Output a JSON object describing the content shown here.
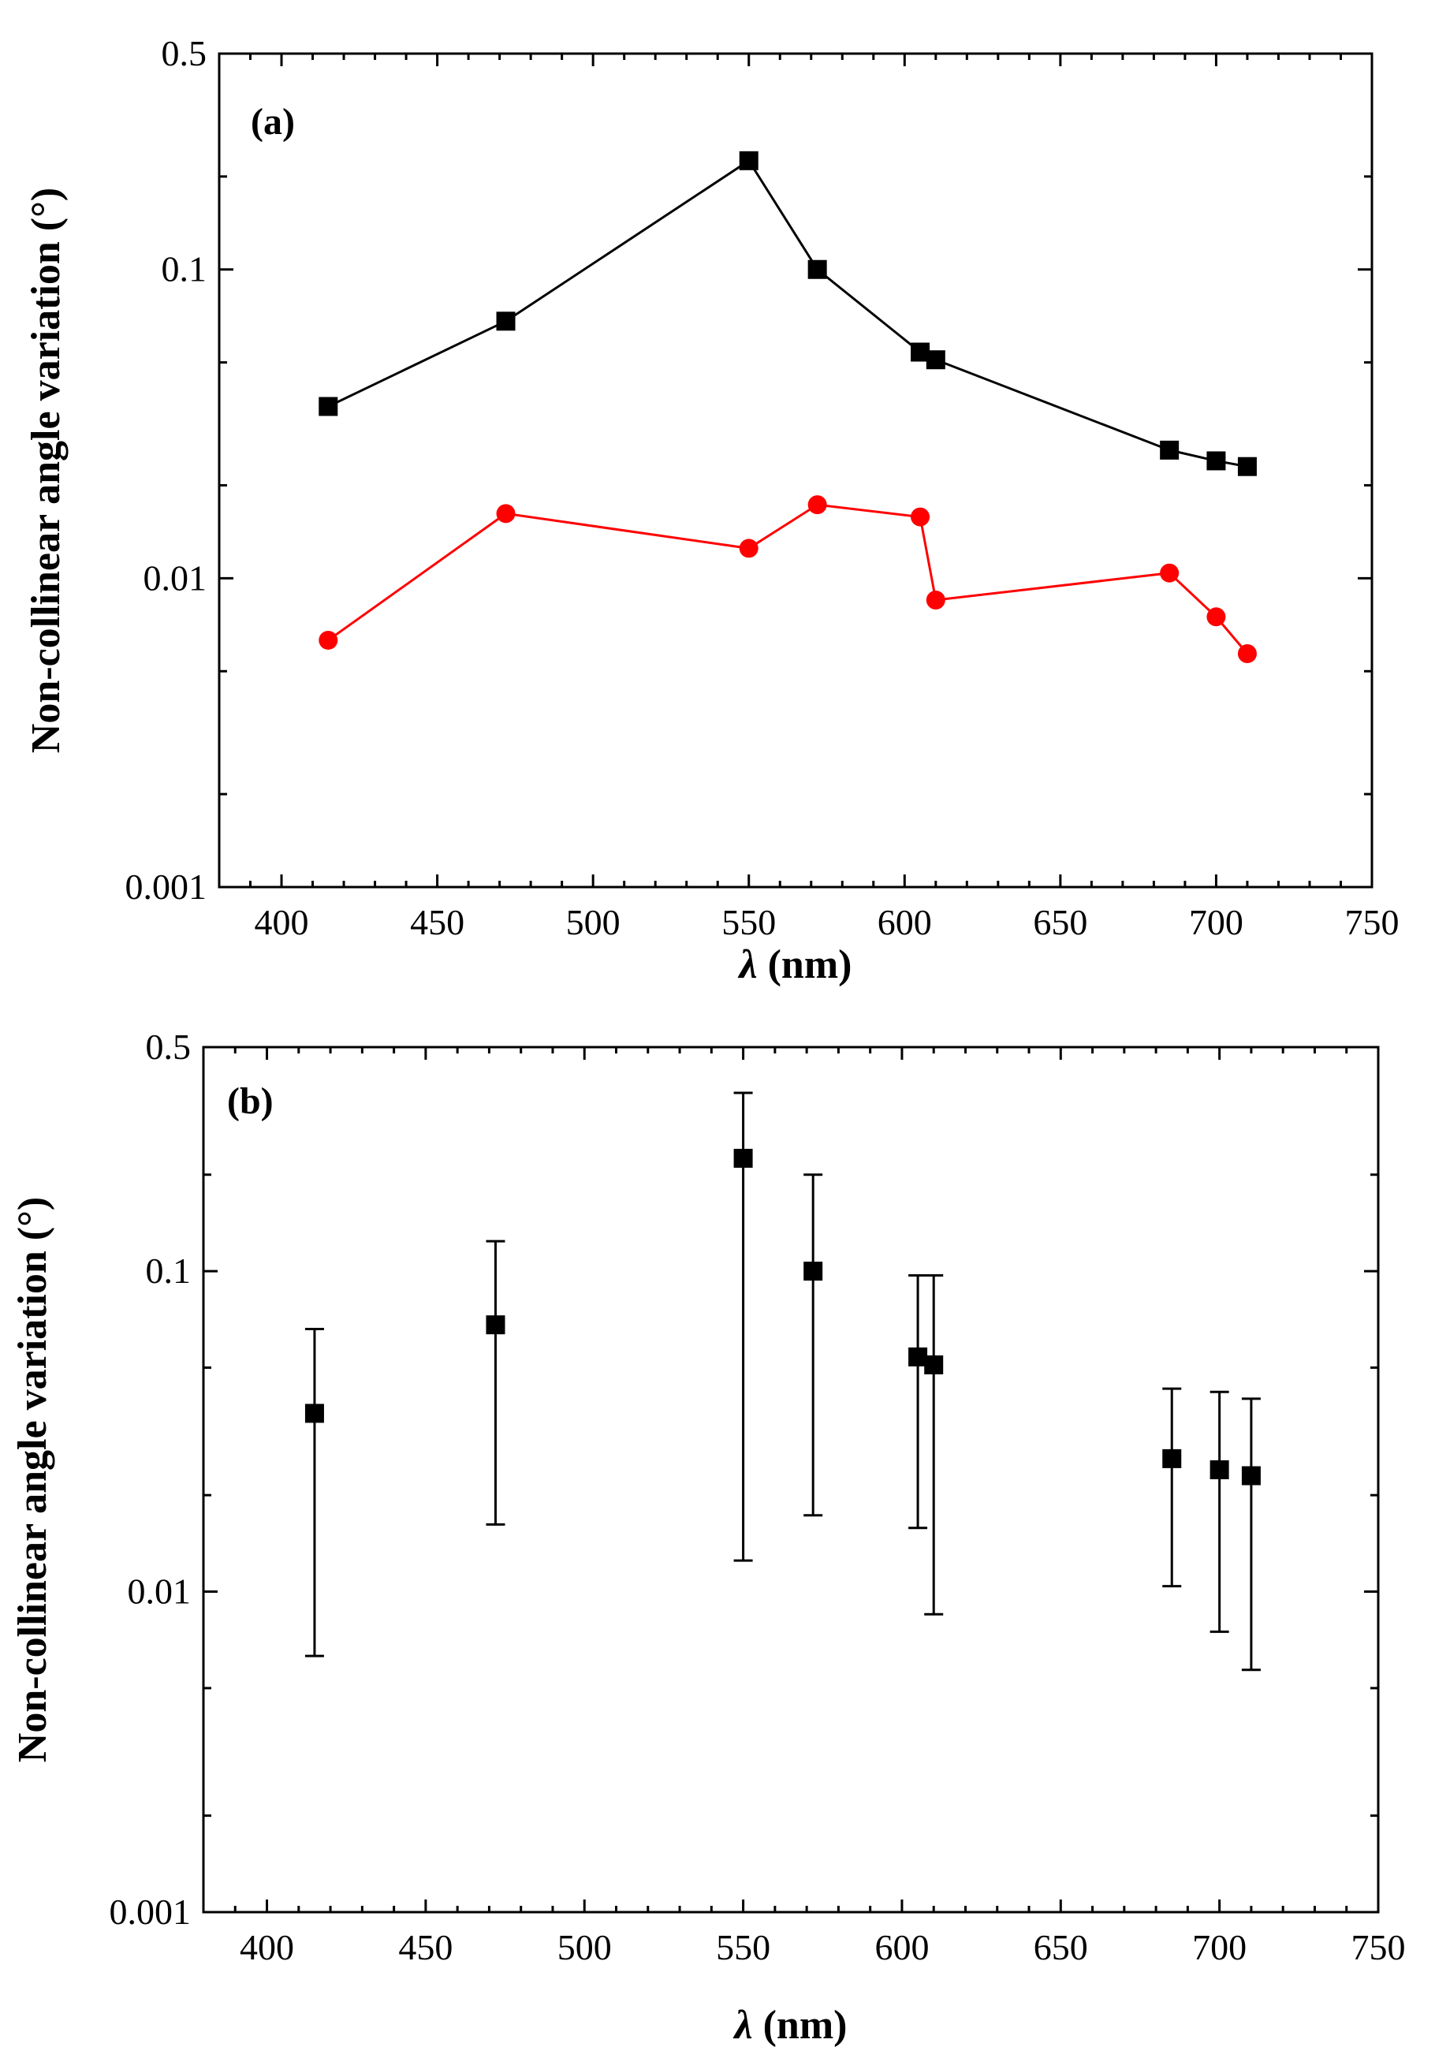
{
  "chart_data": [
    {
      "type": "line",
      "panel_label": "(a)",
      "xlabel_symbol": "λ",
      "xlabel_unit": " (nm)",
      "ylabel": "Non-collinear angle variation (°)",
      "xlim": [
        380,
        750
      ],
      "ylim": [
        0.001,
        0.5
      ],
      "yscale": "log",
      "x_ticks": [
        400,
        450,
        500,
        550,
        600,
        650,
        700,
        750
      ],
      "x_tick_labels": [
        "400",
        "450",
        "500",
        "550",
        "600",
        "650",
        "700",
        "750"
      ],
      "y_ticks": [
        0.001,
        0.01,
        0.1,
        0.5
      ],
      "y_tick_labels": [
        "0.001",
        "0.01",
        "0.1",
        "0.5"
      ],
      "x": [
        415,
        472,
        550,
        572,
        605,
        610,
        685,
        700,
        710
      ],
      "series": [
        {
          "marker": "square",
          "color": "#000000",
          "values": [
            0.036,
            0.068,
            0.225,
            0.1,
            0.054,
            0.051,
            0.026,
            0.024,
            0.023
          ]
        },
        {
          "marker": "circle",
          "color": "#ff0000",
          "values": [
            0.0063,
            0.0162,
            0.0125,
            0.0173,
            0.0158,
            0.0085,
            0.0104,
            0.0075,
            0.0057
          ]
        }
      ]
    },
    {
      "type": "scatter",
      "panel_label": "(b)",
      "xlabel_symbol": "λ",
      "xlabel_unit": " (nm)",
      "ylabel": "Non-collinear angle variation (°)",
      "xlim": [
        380,
        750
      ],
      "ylim": [
        0.001,
        0.5
      ],
      "yscale": "log",
      "x_ticks": [
        400,
        450,
        500,
        550,
        600,
        650,
        700,
        750
      ],
      "x_tick_labels": [
        "400",
        "450",
        "500",
        "550",
        "600",
        "650",
        "700",
        "750"
      ],
      "y_ticks": [
        0.001,
        0.01,
        0.1,
        0.5
      ],
      "y_tick_labels": [
        "0.001",
        "0.01",
        "0.1",
        "0.5"
      ],
      "x": [
        415,
        472,
        550,
        572,
        605,
        610,
        685,
        700,
        710
      ],
      "series": [
        {
          "marker": "square",
          "color": "#000000",
          "values": [
            0.036,
            0.068,
            0.225,
            0.1,
            0.054,
            0.051,
            0.026,
            0.024,
            0.023
          ],
          "error_low": [
            0.0063,
            0.0162,
            0.0125,
            0.0173,
            0.0158,
            0.0085,
            0.0104,
            0.0075,
            0.0057
          ],
          "error_high": [
            0.066,
            0.124,
            0.36,
            0.2,
            0.097,
            0.097,
            0.043,
            0.042,
            0.04
          ]
        }
      ]
    }
  ]
}
